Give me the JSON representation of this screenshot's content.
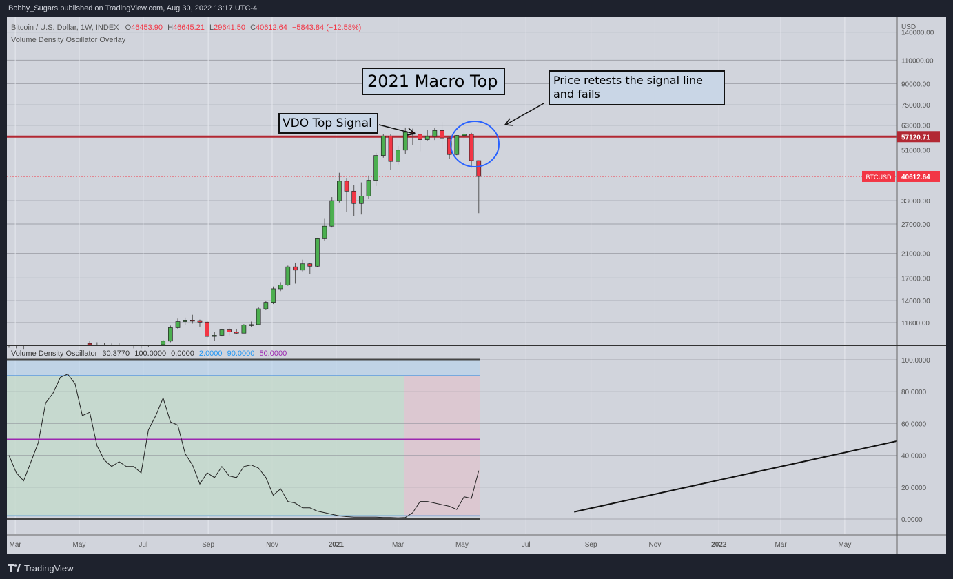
{
  "header": {
    "publish_line": "Bobby_Sugars published on TradingView.com, Aug 30, 2022 13:17 UTC-4"
  },
  "footer": {
    "brand": "TradingView"
  },
  "legend_main": {
    "symbol": "Bitcoin / U.S. Dollar, 1W, INDEX",
    "o_label": "O",
    "o_value": "46453.90",
    "h_label": "H",
    "h_value": "46645.21",
    "l_label": "L",
    "l_value": "29641.50",
    "c_label": "C",
    "c_value": "40612.64",
    "change": "−5843.84 (−12.58%)",
    "overlay": "Volume Density Oscillator Overlay"
  },
  "legend_osc": {
    "name": "Volume Density Oscillator",
    "v1": "30.3770",
    "v2": "100.0000",
    "v3": "0.0000",
    "v4": "2.0000",
    "v5": "90.0000",
    "v6": "50.0000"
  },
  "annotations": {
    "macro_top": "2021 Macro Top",
    "vdo_signal": "VDO Top Signal",
    "retest_line1": "Price retests the signal line",
    "retest_line2": "and fails"
  },
  "price_axis": {
    "currency": "USD",
    "ticks": [
      "140000.00",
      "110000.00",
      "90000.00",
      "75000.00",
      "63000.00",
      "51000.00",
      "33000.00",
      "27000.00",
      "21000.00",
      "17000.00",
      "14000.00",
      "11600.00"
    ],
    "signal_label": "57120.71",
    "last_tag": "BTCUSD",
    "last_label": "40612.64"
  },
  "osc_axis": {
    "ticks": [
      "100.0000",
      "80.0000",
      "60.0000",
      "40.0000",
      "20.0000",
      "0.0000"
    ]
  },
  "time_axis": {
    "labels": [
      "Mar",
      "May",
      "Jul",
      "Sep",
      "Nov",
      "2021",
      "Mar",
      "May",
      "Jul",
      "Sep",
      "Nov",
      "2022",
      "Mar",
      "May"
    ]
  },
  "colors": {
    "bg": "#d1d4dc",
    "up": "#4caf50",
    "down": "#f23645",
    "signal": "#b22833",
    "osc_line": "#222222",
    "band_blue": "#4a90d9",
    "mid_purple": "#9c27b0",
    "circle": "#2962ff"
  },
  "chart_data": [
    {
      "type": "candlestick",
      "title": "Bitcoin / U.S. Dollar, 1W, INDEX",
      "y_scale": "log",
      "ylim": [
        9600,
        160000
      ],
      "x_range": [
        "2020-02-24",
        "2022-06-20"
      ],
      "signal_line": 57120.71,
      "last_price": 40612.64,
      "candles": [
        [
          "2020-02-24",
          9300,
          9350,
          8700,
          9250
        ],
        [
          "2020-03-02",
          9250,
          9300,
          8800,
          9100
        ],
        [
          "2020-03-09",
          9100,
          9200,
          8900,
          9000
        ],
        [
          "2020-05-11",
          9700,
          9900,
          9300,
          9600
        ],
        [
          "2020-05-18",
          9600,
          9800,
          9300,
          9550
        ],
        [
          "2020-05-25",
          9550,
          9750,
          9200,
          9450
        ],
        [
          "2020-06-01",
          9450,
          9700,
          9250,
          9600
        ],
        [
          "2020-06-08",
          9600,
          9750,
          9200,
          9300
        ],
        [
          "2020-06-15",
          9300,
          9500,
          9000,
          9200
        ],
        [
          "2020-06-22",
          9200,
          9300,
          8900,
          9050
        ],
        [
          "2020-06-29",
          9050,
          9300,
          8950,
          9200
        ],
        [
          "2020-07-06",
          9200,
          9400,
          9100,
          9350
        ],
        [
          "2020-07-13",
          9350,
          9500,
          9050,
          9200
        ],
        [
          "2020-07-20",
          9200,
          10000,
          9150,
          9900
        ],
        [
          "2020-07-27",
          9900,
          11300,
          9800,
          11100
        ],
        [
          "2020-08-03",
          11100,
          12000,
          11000,
          11700
        ],
        [
          "2020-08-10",
          11700,
          12100,
          11400,
          11850
        ],
        [
          "2020-08-17",
          11850,
          12400,
          11500,
          11800
        ],
        [
          "2020-08-24",
          11800,
          11900,
          11200,
          11650
        ],
        [
          "2020-08-31",
          11650,
          11800,
          10200,
          10300
        ],
        [
          "2020-09-07",
          10300,
          10700,
          9900,
          10400
        ],
        [
          "2020-09-14",
          10400,
          11000,
          10300,
          10900
        ],
        [
          "2020-09-21",
          10900,
          11100,
          10400,
          10700
        ],
        [
          "2020-09-28",
          10700,
          10950,
          10550,
          10600
        ],
        [
          "2020-10-05",
          10600,
          11450,
          10600,
          11350
        ],
        [
          "2020-10-12",
          11350,
          11700,
          11200,
          11400
        ],
        [
          "2020-10-19",
          11400,
          13200,
          11400,
          13050
        ],
        [
          "2020-10-26",
          13050,
          14000,
          12900,
          13800
        ],
        [
          "2020-11-02",
          13800,
          15800,
          13600,
          15500
        ],
        [
          "2020-11-09",
          15500,
          16400,
          15200,
          16000
        ],
        [
          "2020-11-16",
          16000,
          18900,
          15900,
          18700
        ],
        [
          "2020-11-23",
          18700,
          19400,
          16200,
          18200
        ],
        [
          "2020-11-30",
          18200,
          19900,
          18000,
          19200
        ],
        [
          "2020-12-07",
          19200,
          19400,
          17600,
          18800
        ],
        [
          "2020-12-14",
          18800,
          24000,
          18700,
          23800
        ],
        [
          "2020-12-21",
          23800,
          28400,
          23300,
          26500
        ],
        [
          "2020-12-28",
          26500,
          34000,
          26200,
          33000
        ],
        [
          "2021-01-04",
          33000,
          41900,
          32500,
          39000
        ],
        [
          "2021-01-11",
          39000,
          40100,
          30000,
          35800
        ],
        [
          "2021-01-18",
          35800,
          37800,
          28900,
          32200
        ],
        [
          "2021-01-25",
          32200,
          38600,
          29300,
          34300
        ],
        [
          "2021-02-01",
          34300,
          40900,
          33500,
          39300
        ],
        [
          "2021-02-08",
          39300,
          49700,
          37400,
          48600
        ],
        [
          "2021-02-15",
          48600,
          58300,
          47700,
          57400
        ],
        [
          "2021-02-22",
          57400,
          58300,
          43000,
          46200
        ],
        [
          "2021-03-01",
          46200,
          52700,
          45000,
          50900
        ],
        [
          "2021-03-08",
          50900,
          61800,
          49300,
          59300
        ],
        [
          "2021-03-15",
          59300,
          61200,
          53300,
          58300
        ],
        [
          "2021-03-22",
          58300,
          58700,
          50400,
          55700
        ],
        [
          "2021-03-29",
          55700,
          60400,
          55300,
          57200
        ],
        [
          "2021-04-05",
          57200,
          61400,
          55500,
          60200
        ],
        [
          "2021-04-12",
          60200,
          64800,
          51300,
          56500
        ],
        [
          "2021-04-19",
          56500,
          57000,
          47200,
          49000
        ],
        [
          "2021-04-26",
          49000,
          57900,
          48700,
          57700
        ],
        [
          "2021-05-03",
          57700,
          59600,
          55500,
          58300
        ],
        [
          "2021-05-10",
          58300,
          59000,
          43800,
          46500
        ],
        [
          "2021-05-17",
          46500,
          46600,
          29641.5,
          40612.64
        ]
      ]
    },
    {
      "type": "line",
      "title": "Volume Density Oscillator",
      "ylim": [
        0,
        100
      ],
      "levels": {
        "top": 90,
        "middle": 50,
        "bottom": 2
      },
      "current": 30.377,
      "top_signal_from": "2021-03-08",
      "x": [
        "2020-02-24",
        "2020-03-02",
        "2020-03-09",
        "2020-03-16",
        "2020-03-23",
        "2020-03-30",
        "2020-04-06",
        "2020-04-13",
        "2020-04-20",
        "2020-04-27",
        "2020-05-04",
        "2020-05-11",
        "2020-05-18",
        "2020-05-25",
        "2020-06-01",
        "2020-06-08",
        "2020-06-15",
        "2020-06-22",
        "2020-06-29",
        "2020-07-06",
        "2020-07-13",
        "2020-07-20",
        "2020-07-27",
        "2020-08-03",
        "2020-08-10",
        "2020-08-17",
        "2020-08-24",
        "2020-08-31",
        "2020-09-07",
        "2020-09-14",
        "2020-09-21",
        "2020-09-28",
        "2020-10-05",
        "2020-10-12",
        "2020-10-19",
        "2020-10-26",
        "2020-11-02",
        "2020-11-09",
        "2020-11-16",
        "2020-11-23",
        "2020-11-30",
        "2020-12-07",
        "2020-12-14",
        "2020-12-21",
        "2020-12-28",
        "2021-01-04",
        "2021-01-11",
        "2021-01-18",
        "2021-01-25",
        "2021-02-01",
        "2021-02-08",
        "2021-02-15",
        "2021-02-22",
        "2021-03-01",
        "2021-03-08",
        "2021-03-15",
        "2021-03-22",
        "2021-03-29",
        "2021-04-05",
        "2021-04-12",
        "2021-04-19",
        "2021-04-26",
        "2021-05-03",
        "2021-05-10",
        "2021-05-17"
      ],
      "y": [
        40,
        29,
        24,
        36,
        48,
        73,
        79,
        89,
        91,
        85,
        65,
        67,
        46,
        37,
        33,
        36,
        33,
        33,
        29,
        56,
        65,
        76,
        61,
        59,
        41,
        34,
        22,
        29,
        26,
        33,
        27,
        26,
        33,
        34,
        32,
        26,
        15,
        19,
        11,
        10,
        7,
        7,
        5,
        4,
        3,
        2,
        1.5,
        1.2,
        1.2,
        1.2,
        1.2,
        1,
        1,
        0.8,
        1,
        4,
        11,
        11,
        10,
        9,
        8,
        6,
        14,
        13,
        30.4
      ]
    }
  ],
  "line_drawing": {
    "from": [
      "2021-08-16",
      4.5
    ],
    "to": [
      "2022-06-20",
      49
    ]
  }
}
